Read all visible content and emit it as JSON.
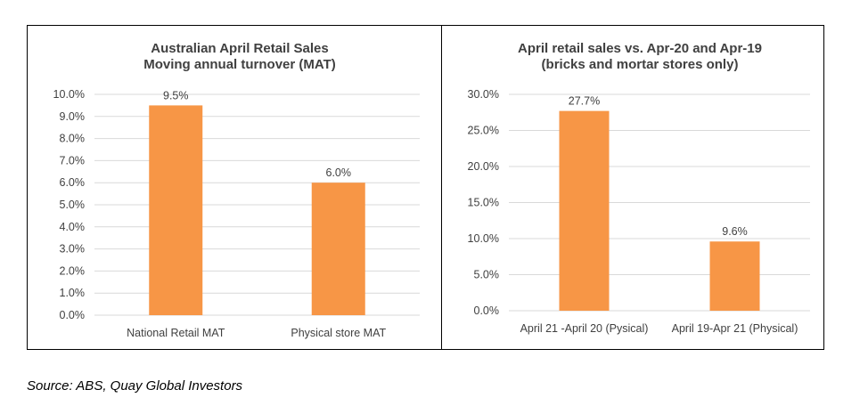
{
  "chart_data": [
    {
      "type": "bar",
      "title": [
        "Australian April Retail Sales",
        "Moving annual turnover (MAT)"
      ],
      "categories": [
        "National Retail MAT",
        "Physical store MAT"
      ],
      "values": [
        9.5,
        6.0
      ],
      "data_labels": [
        "9.5%",
        "6.0%"
      ],
      "ylim": [
        0,
        10
      ],
      "ytick_values": [
        0,
        1,
        2,
        3,
        4,
        5,
        6,
        7,
        8,
        9,
        10
      ],
      "ytick_labels": [
        "0.0%",
        "1.0%",
        "2.0%",
        "3.0%",
        "4.0%",
        "5.0%",
        "6.0%",
        "7.0%",
        "8.0%",
        "9.0%",
        "10.0%"
      ],
      "grid": true,
      "bar_color": "#F79646"
    },
    {
      "type": "bar",
      "title": [
        "April retail sales vs. Apr-20 and Apr-19",
        "(bricks and mortar stores only)"
      ],
      "categories": [
        "April 21 -April 20 (Pysical)",
        "April 19-Apr 21 (Physical)"
      ],
      "values": [
        27.7,
        9.6
      ],
      "data_labels": [
        "27.7%",
        "9.6%"
      ],
      "ylim": [
        0,
        30
      ],
      "ytick_values": [
        0,
        5,
        10,
        15,
        20,
        25,
        30
      ],
      "ytick_labels": [
        "0.0%",
        "5.0%",
        "10.0%",
        "15.0%",
        "20.0%",
        "25.0%",
        "30.0%"
      ],
      "grid": true,
      "bar_color": "#F79646"
    }
  ],
  "source_note": "Source: ABS, Quay Global Investors"
}
